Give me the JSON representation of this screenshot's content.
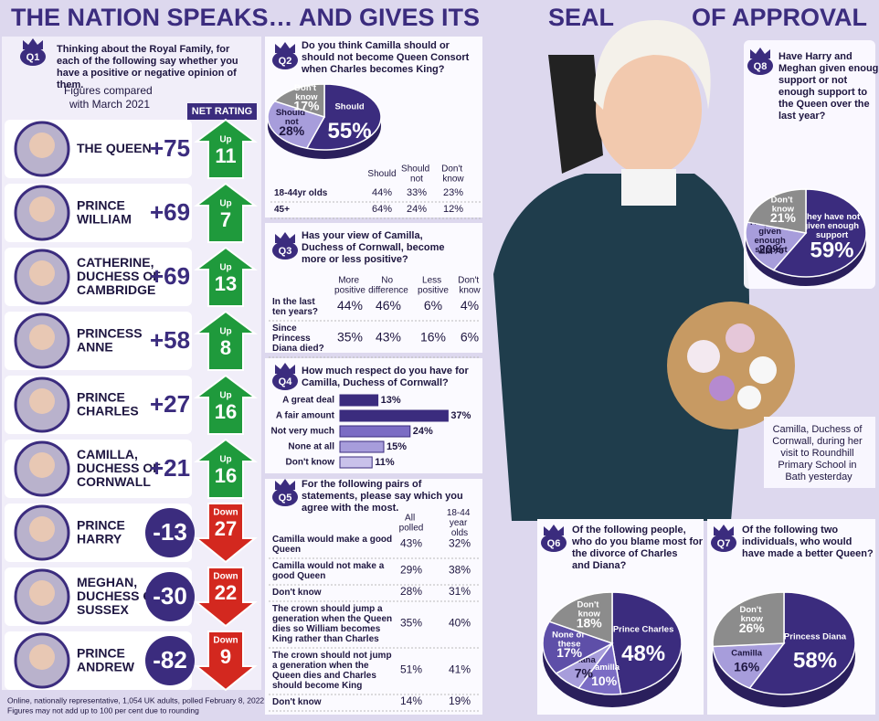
{
  "title_parts": [
    "THE NATION SPEAKS… AND GIVES ITS",
    "SEAL",
    "OF APPROVAL"
  ],
  "q1": {
    "badge": "Q1",
    "question": "Thinking about the Royal Family, for each of the following say whether you have a positive or negative opinion of them.",
    "note": "Figures compared with March 2021",
    "header": "NET RATING",
    "rows": [
      {
        "name": "THE QUEEN",
        "rating": "+75",
        "change_label": "Up",
        "change": 11,
        "arrow": "up",
        "color": "#1f9a3c"
      },
      {
        "name": "PRINCE WILLIAM",
        "rating": "+69",
        "change_label": "Up",
        "change": 7,
        "arrow": "up",
        "color": "#1f9a3c"
      },
      {
        "name": "CATHERINE, DUCHESS OF CAMBRIDGE",
        "rating": "+69",
        "change_label": "Up",
        "change": 13,
        "arrow": "up",
        "color": "#1f9a3c"
      },
      {
        "name": "PRINCESS ANNE",
        "rating": "+58",
        "change_label": "Up",
        "change": 8,
        "arrow": "up",
        "color": "#1f9a3c"
      },
      {
        "name": "PRINCE CHARLES",
        "rating": "+27",
        "change_label": "Up",
        "change": 16,
        "arrow": "up",
        "color": "#1f9a3c"
      },
      {
        "name": "CAMILLA, DUCHESS OF CORNWALL",
        "rating": "+21",
        "change_label": "Up",
        "change": 16,
        "arrow": "up",
        "color": "#1f9a3c"
      },
      {
        "name": "PRINCE HARRY",
        "rating": "-13",
        "change_label": "Down",
        "change": 27,
        "arrow": "down",
        "color": "#d3281f",
        "rating_circle": true
      },
      {
        "name": "MEGHAN, DUCHESS OF SUSSEX",
        "rating": "-30",
        "change_label": "Down",
        "change": 22,
        "arrow": "down",
        "color": "#d3281f",
        "rating_circle": true
      },
      {
        "name": "PRINCE ANDREW",
        "rating": "-82",
        "change_label": "Down",
        "change": 9,
        "arrow": "down",
        "color": "#d3281f",
        "rating_circle": true
      }
    ]
  },
  "q2_table": {
    "headers": [
      "Should",
      "Should not",
      "Don't know"
    ],
    "rows": [
      [
        "18-44yr olds",
        "44%",
        "33%",
        "23%"
      ],
      [
        "45+",
        "64%",
        "24%",
        "12%"
      ]
    ]
  },
  "q3": {
    "badge": "Q3",
    "question": "Has your view of Camilla, Duchess of Cornwall, become more or less positive?",
    "headers": [
      "More positive",
      "No difference",
      "Less positive",
      "Don't know"
    ],
    "rows": [
      [
        "In the last ten years?",
        "44%",
        "46%",
        "6%",
        "4%"
      ],
      [
        "Since Princess Diana died?",
        "35%",
        "43%",
        "16%",
        "6%"
      ]
    ]
  },
  "q5": {
    "badge": "Q5",
    "question": "For the following pairs of statements, please say which you agree with the most.",
    "headers": [
      "All polled",
      "18-44 year olds"
    ],
    "rows": [
      [
        "Camilla would make a good Queen",
        "43%",
        "32%"
      ],
      [
        "Camilla would not make a good Queen",
        "29%",
        "38%"
      ],
      [
        "Don't know",
        "28%",
        "31%"
      ],
      [
        "The crown should jump a generation when the Queen dies so William becomes King rather than Charles",
        "35%",
        "40%"
      ],
      [
        "The crown should not jump a generation when the Queen dies and Charles should become King",
        "51%",
        "41%"
      ],
      [
        "Don't know",
        "14%",
        "19%"
      ]
    ]
  },
  "caption": "Camilla, Duchess of Cornwall, during her visit to Roundhill Primary School in Bath yesterday",
  "footnotes": [
    "Online, nationally representative, 1,054 UK adults, polled February 8, 2022",
    "Figures may not add up to 100 per cent due to rounding"
  ],
  "chart_data": [
    {
      "type": "pie",
      "badge": "Q2",
      "title": "Do you think Camilla should or should not become Queen Consort when Charles becomes King?",
      "categories": [
        "Should",
        "Should not",
        "Don't know"
      ],
      "values": [
        55,
        28,
        17
      ],
      "value_labels": [
        "55%",
        "28%",
        "17%"
      ],
      "colors": [
        "#3b2c7e",
        "#a79ddb",
        "#8c8c8c"
      ]
    },
    {
      "type": "hbar",
      "badge": "Q4",
      "title": "How much respect do you have for Camilla, Duchess of Cornwall?",
      "categories": [
        "A great deal",
        "A fair amount",
        "Not very much",
        "None at all",
        "Don't know"
      ],
      "values": [
        13,
        37,
        24,
        15,
        11
      ],
      "value_labels": [
        "13%",
        "37%",
        "24%",
        "15%",
        "11%"
      ],
      "colors": [
        "#3b2c7e",
        "#3b2c7e",
        "#7b6cc4",
        "#a79ddb",
        "#c9c2ea"
      ]
    },
    {
      "type": "pie",
      "badge": "Q6",
      "title": "Of the following people, who do you blame most for the divorce of Charles and Diana?",
      "categories": [
        "Prince Charles",
        "Camilla",
        "Diana",
        "None of these",
        "Don't know"
      ],
      "values": [
        48,
        10,
        7,
        17,
        18
      ],
      "value_labels": [
        "48%",
        "10%",
        "7%",
        "17%",
        "18%"
      ],
      "colors": [
        "#3b2c7e",
        "#7b6cc4",
        "#a79ddb",
        "#5e4fa8",
        "#8c8c8c"
      ]
    },
    {
      "type": "pie",
      "badge": "Q7",
      "title": "Of the following two individuals, who would have made a better Queen?",
      "categories": [
        "Princess Diana",
        "Camilla",
        "Don't know"
      ],
      "values": [
        58,
        16,
        26
      ],
      "value_labels": [
        "58%",
        "16%",
        "26%"
      ],
      "colors": [
        "#3b2c7e",
        "#a79ddb",
        "#8c8c8c"
      ]
    },
    {
      "type": "pie",
      "badge": "Q8",
      "title": "Have Harry and Meghan given enough support or not enough support to the Queen over the last year?",
      "categories": [
        "They have not given enough support",
        "They have given enough support",
        "Don't know"
      ],
      "values": [
        59,
        20,
        21
      ],
      "value_labels": [
        "59%",
        "20%",
        "21%"
      ],
      "colors": [
        "#3b2c7e",
        "#a79ddb",
        "#8c8c8c"
      ]
    }
  ]
}
